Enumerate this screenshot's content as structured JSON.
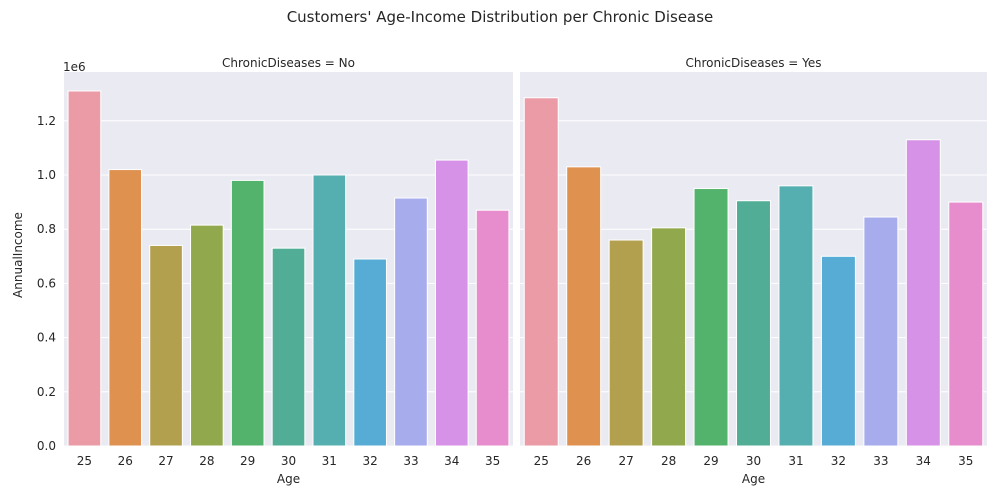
{
  "chart_data": {
    "type": "bar",
    "title": "Customers' Age-Income Distribution per Chronic Disease",
    "categories": [
      "25",
      "26",
      "27",
      "28",
      "29",
      "30",
      "31",
      "32",
      "33",
      "34",
      "35"
    ],
    "xlabel": "Age",
    "ylabel": "AnnualIncome",
    "y_offset_text": "1e6",
    "ylim": [
      0,
      1.38
    ],
    "y_ticks": [
      0.0,
      0.2,
      0.4,
      0.6,
      0.8,
      1.0,
      1.2
    ],
    "y_tick_labels": [
      "0.0",
      "0.2",
      "0.4",
      "0.6",
      "0.8",
      "1.0",
      "1.2"
    ],
    "grid": true,
    "bar_colors": [
      "#ea9ba6",
      "#df9150",
      "#b3a04f",
      "#92a84d",
      "#53b26b",
      "#52ad96",
      "#55afb0",
      "#57acd5",
      "#a6acec",
      "#d592e6",
      "#e78ccc"
    ],
    "panels": [
      {
        "facet_title": "ChronicDiseases = No",
        "values": [
          1.31,
          1.02,
          0.74,
          0.815,
          0.98,
          0.73,
          1.0,
          0.69,
          0.915,
          1.055,
          0.87
        ]
      },
      {
        "facet_title": "ChronicDiseases = Yes",
        "values": [
          1.285,
          1.03,
          0.76,
          0.805,
          0.95,
          0.905,
          0.96,
          0.7,
          0.845,
          1.13,
          0.9
        ]
      }
    ]
  }
}
